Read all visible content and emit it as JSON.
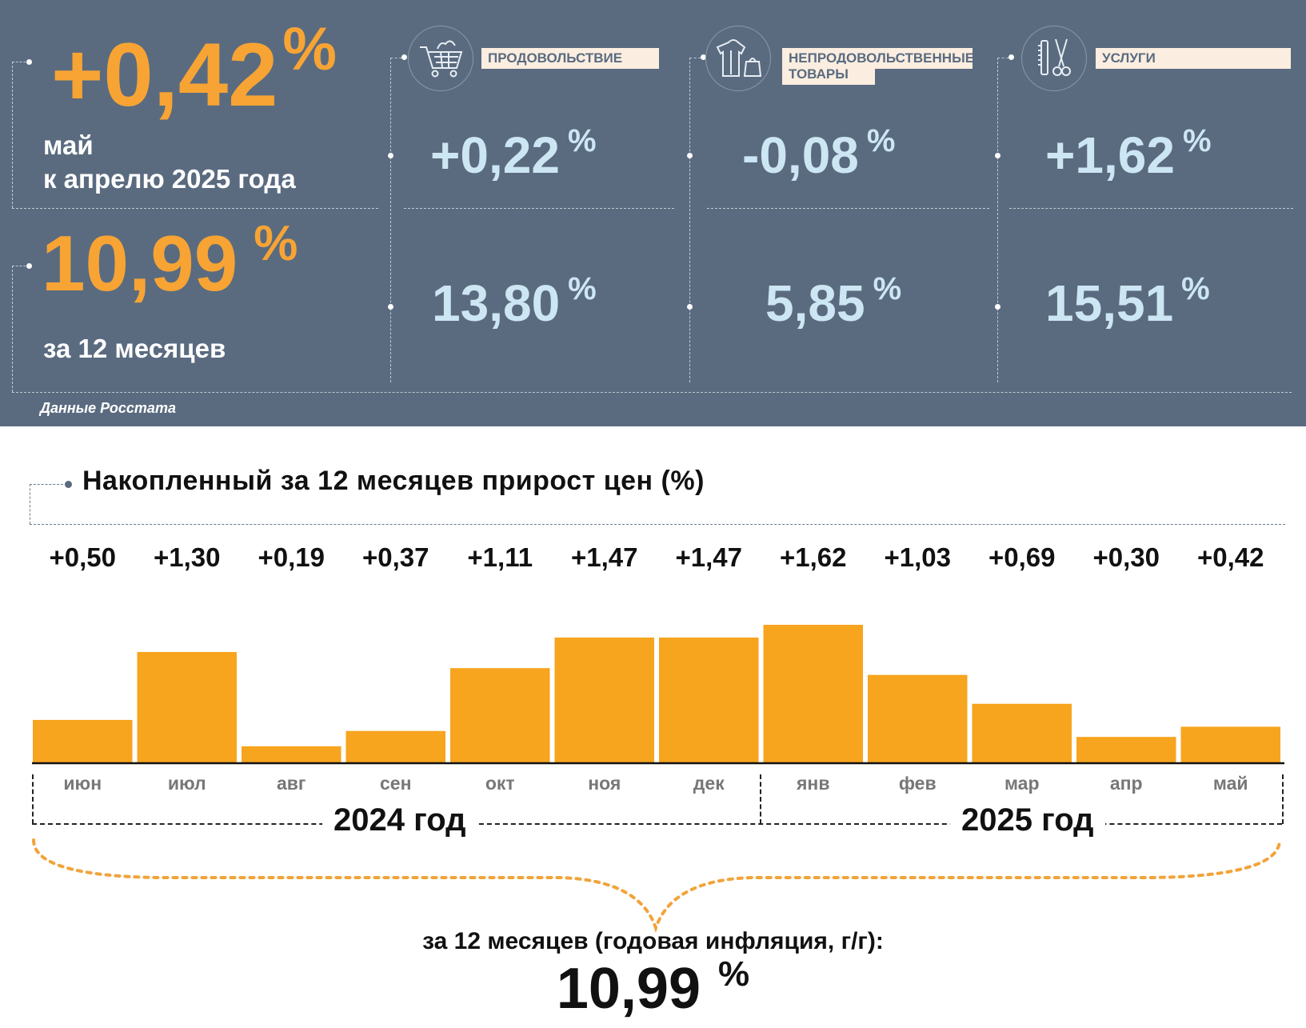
{
  "header": {
    "monthly_value": "+0,42",
    "monthly_percent": "%",
    "monthly_caption_line1": "май",
    "monthly_caption_line2": "к апрелю 2025 года",
    "annual_value": "10,99",
    "annual_percent": "%",
    "annual_caption": "за 12 месяцев",
    "source": "Данные Росстата"
  },
  "categories": [
    {
      "label": "ПРОДОВОЛЬСТВИЕ",
      "icon": "shopping-cart-icon",
      "monthly": "+0,22",
      "annual": "13,80",
      "percent": "%"
    },
    {
      "label_line1": "НЕПРОДОВОЛЬСТВЕННЫЕ",
      "label_line2": "ТОВАРЫ",
      "icon": "clothing-bag-icon",
      "monthly": "-0,08",
      "annual": "5,85",
      "percent": "%"
    },
    {
      "label": "УСЛУГИ",
      "icon": "comb-scissors-icon",
      "monthly": "+1,62",
      "annual": "15,51",
      "percent": "%"
    }
  ],
  "chart_data": {
    "type": "bar",
    "title": "Накопленный за 12 месяцев прирост цен (%)",
    "categories": [
      "июн",
      "июл",
      "авг",
      "сен",
      "окт",
      "ноя",
      "дек",
      "янв",
      "фев",
      "мар",
      "апр",
      "май"
    ],
    "values": [
      0.5,
      1.3,
      0.19,
      0.37,
      1.11,
      1.47,
      1.47,
      1.62,
      1.03,
      0.69,
      0.3,
      0.42
    ],
    "value_labels": [
      "+0,50",
      "+1,30",
      "+0,19",
      "+0,37",
      "+1,11",
      "+1,47",
      "+1,47",
      "+1,62",
      "+1,03",
      "+0,69",
      "+0,30",
      "+0,42"
    ],
    "year_groups": [
      {
        "label": "2024 год",
        "months": 7
      },
      {
        "label": "2025 год",
        "months": 5
      }
    ],
    "bar_color": "#f7a41e",
    "grid": false
  },
  "summary": {
    "caption": "за 12 месяцев (годовая инфляция, г/г):",
    "value": "10,99",
    "percent": "%"
  },
  "colors": {
    "panel": "#5a6b80",
    "accent": "#f7a434",
    "light_blue": "#cde6f3",
    "label_bg": "#fbeee0"
  }
}
